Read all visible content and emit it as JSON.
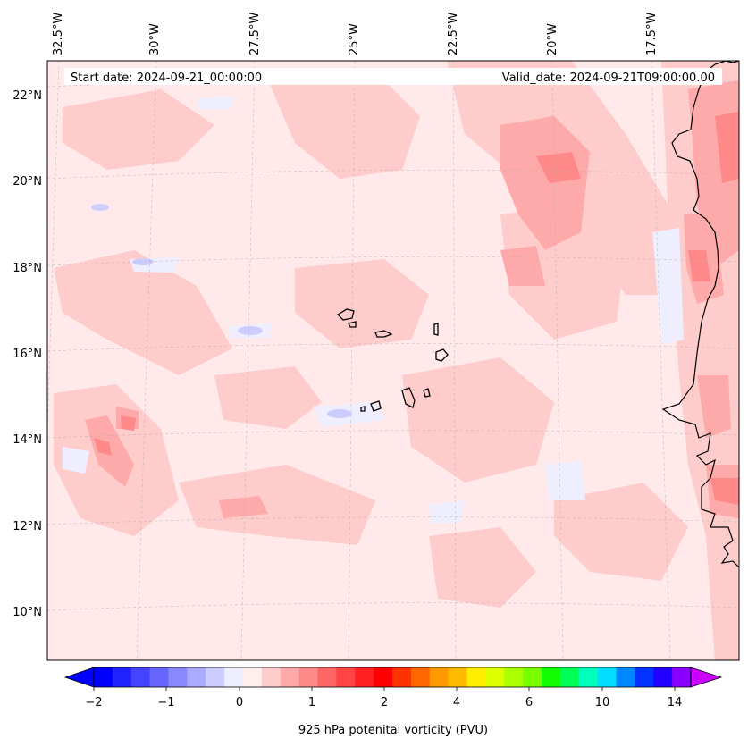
{
  "header": {
    "start_date": "Start date: 2024-09-21_00:00:00",
    "valid_date": "Valid_date: 2024-09-21T09:00:00.00"
  },
  "axes": {
    "lon_labels": [
      "32.5°W",
      "30°W",
      "27.5°W",
      "25°W",
      "22.5°W",
      "20°W",
      "17.5°W"
    ],
    "lat_labels": [
      "22°N",
      "20°N",
      "18°N",
      "16°N",
      "14°N",
      "12°N",
      "10°N"
    ]
  },
  "colorbar": {
    "title": "925 hPa potenital vorticity (PVU)",
    "tick_labels": [
      "−2",
      "−1",
      "0",
      "1",
      "2",
      "4",
      "6",
      "10",
      "14"
    ],
    "colors": [
      "#0000ff",
      "#2222ff",
      "#4444ff",
      "#6666ff",
      "#8888ff",
      "#aaaaff",
      "#ccccff",
      "#eeeeff",
      "#ffeeee",
      "#ffcccc",
      "#ffaaaa",
      "#ff8888",
      "#ff6666",
      "#ff4444",
      "#ff2222",
      "#ff0000",
      "#ff3300",
      "#ff6600",
      "#ff9900",
      "#ffbb00",
      "#ffee00",
      "#ddff00",
      "#aaff00",
      "#77ff00",
      "#11ff00",
      "#00ff55",
      "#00ffbb",
      "#00ddff",
      "#0088ff",
      "#0033ff",
      "#2200ff",
      "#8800ff"
    ],
    "under_color": "#0000ff",
    "over_color": "#cc00ff"
  },
  "field_colors": {
    "background": "#ffe9ea",
    "light": "#ffcccc",
    "medium": "#ffaaaa",
    "strong": "#ff8888",
    "negative": "#eeeeff",
    "negative2": "#ccccff"
  }
}
